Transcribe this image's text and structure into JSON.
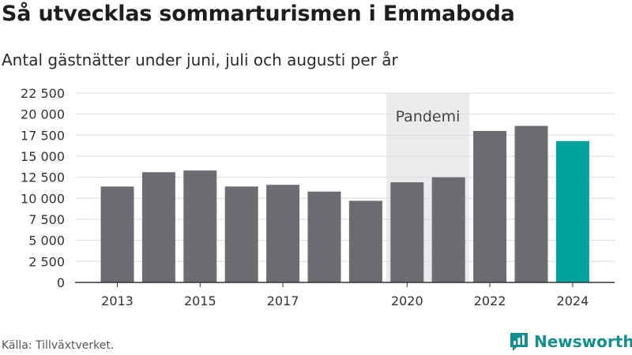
{
  "title": "Så utvecklas sommarturismen i Emmaboda",
  "subtitle": "Antal gästnätter under juni, juli och augusti per år",
  "source": "Källa: Tillväxtverket.",
  "brand": {
    "name": "Newsworthy",
    "icon": "newsworthy-logo-icon",
    "color": "#12908e"
  },
  "chart_data": {
    "type": "bar",
    "categories": [
      "2013",
      "2014",
      "2015",
      "2016",
      "2017",
      "2018",
      "2019",
      "2020",
      "2021",
      "2022",
      "2023",
      "2024"
    ],
    "values": [
      11400,
      13100,
      13300,
      11400,
      11600,
      10800,
      9700,
      11900,
      12500,
      18000,
      18600,
      16800
    ],
    "x_tick_labels": [
      "2013",
      "2015",
      "2017",
      "2020",
      "2022",
      "2024"
    ],
    "y_ticks": [
      0,
      2500,
      5000,
      7500,
      10000,
      12500,
      15000,
      17500,
      20000,
      22500
    ],
    "y_tick_labels": [
      "0",
      "2 500",
      "5 000",
      "7 500",
      "10 000",
      "12 500",
      "15 000",
      "17 500",
      "20 000",
      "22 500"
    ],
    "ylim": [
      0,
      22500
    ],
    "grid": true,
    "colors": {
      "default": "#6d6c72",
      "highlight": "#00a39b",
      "grid": "#dddddd",
      "shade": "#ebebeb"
    },
    "highlight_category": "2024",
    "annotation": {
      "label": "Pandemi",
      "from": "2020",
      "to": "2021"
    }
  }
}
